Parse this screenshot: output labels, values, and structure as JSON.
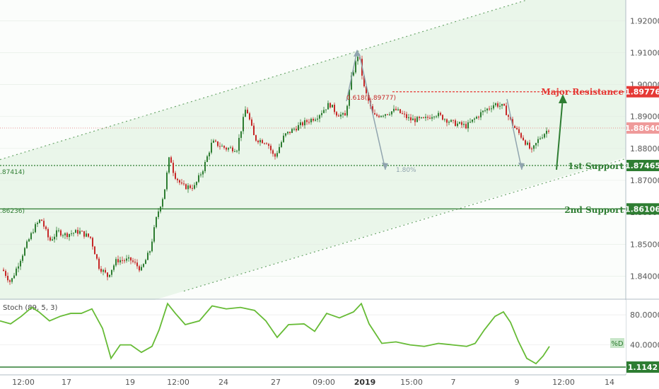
{
  "chart_data": {
    "type": "candlestick",
    "price_axis": {
      "ylim": [
        1.833,
        1.9265
      ],
      "ticks": [
        "1.92000",
        "1.91000",
        "1.90000",
        "1.89000",
        "1.88000",
        "1.87000",
        "1.86000",
        "1.85000",
        "1.84000"
      ],
      "tick_values": [
        1.92,
        1.91,
        1.9,
        1.89,
        1.88,
        1.87,
        1.86,
        1.85,
        1.84
      ]
    },
    "time_axis": {
      "ticks": [
        "12:00",
        "17",
        "19",
        "12:00",
        "24",
        "27",
        "09:00",
        "2019",
        "15:00",
        "7",
        "9",
        "12:00",
        "14"
      ],
      "bold_tick": "2019"
    },
    "levels": [
      {
        "name": "Major Resistance",
        "value": 1.89776,
        "label": "1.89776",
        "color": "#e53935"
      },
      {
        "name": "1st Support",
        "value": 1.87465,
        "label": "1.87465",
        "color": "#2e7d32"
      },
      {
        "name": "2nd Support",
        "value": 1.86106,
        "label": "1.86106",
        "color": "#2e7d32"
      }
    ],
    "current_price": {
      "value": 1.8864,
      "label": "1.88640",
      "color": "#ef9a9a"
    },
    "left_clipped_labels": [
      ".87414)",
      ".86236)"
    ],
    "fib_labels": [
      "0.618(1.89777)",
      "1.80%"
    ],
    "channel_color": "#e8f5e9",
    "candle_colors": {
      "up": "#2e7d32",
      "down": "#c62828"
    },
    "oscillator": {
      "title": "Stoch (89, 5, 3)",
      "ylim": [
        0,
        100
      ],
      "ticks": [
        "80.0000",
        "40.0000"
      ],
      "tick_values": [
        80,
        40
      ],
      "d_label": "%D",
      "d_value": 40,
      "line_color": "#66bb35",
      "level_label": "1.1142"
    }
  }
}
